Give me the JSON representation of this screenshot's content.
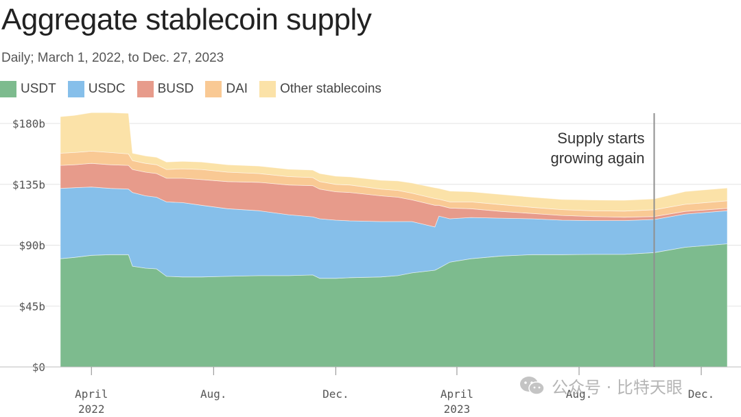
{
  "title": "Aggregate stablecoin supply",
  "subtitle": "Daily; March 1, 2022, to Dec. 27, 2023",
  "legend": [
    {
      "label": "USDT",
      "color": "#7dbb8e"
    },
    {
      "label": "USDC",
      "color": "#86bfea"
    },
    {
      "label": "BUSD",
      "color": "#e79b8b"
    },
    {
      "label": "DAI",
      "color": "#f9c994"
    },
    {
      "label": "Other stablecoins",
      "color": "#fbe2a8"
    }
  ],
  "watermark": {
    "text": "公众号 · 比特天眼",
    "icon": "wechat-logo-icon"
  },
  "chart_data": {
    "type": "area",
    "stacked": true,
    "title": "Aggregate stablecoin supply",
    "subtitle": "Daily; March 1, 2022, to Dec. 27, 2023",
    "xlabel": "",
    "ylabel": "",
    "x_range": [
      "2022-03-01",
      "2023-12-27"
    ],
    "ylim": [
      0,
      180
    ],
    "y_unit": "billions USD",
    "yticks": [
      0,
      45,
      90,
      135,
      180
    ],
    "ytick_labels": [
      "$0",
      "$45b",
      "$90b",
      "$135b",
      "$180b"
    ],
    "xticks": [
      {
        "date": "2022-04-01",
        "label": "April",
        "year": "2022"
      },
      {
        "date": "2022-08-01",
        "label": "Aug.",
        "year": ""
      },
      {
        "date": "2022-12-01",
        "label": "Dec.",
        "year": ""
      },
      {
        "date": "2023-04-01",
        "label": "April",
        "year": "2023"
      },
      {
        "date": "2023-08-01",
        "label": "Aug.",
        "year": ""
      },
      {
        "date": "2023-12-01",
        "label": "Dec.",
        "year": ""
      }
    ],
    "grid": true,
    "legend_position": "top-left",
    "annotation": {
      "date": "2023-10-15",
      "lines": [
        "Supply starts",
        "growing again"
      ]
    },
    "x": [
      "2022-03-01",
      "2022-03-15",
      "2022-04-01",
      "2022-04-20",
      "2022-05-08",
      "2022-05-12",
      "2022-05-25",
      "2022-06-05",
      "2022-06-15",
      "2022-07-01",
      "2022-07-20",
      "2022-08-15",
      "2022-09-15",
      "2022-10-15",
      "2022-11-08",
      "2022-11-15",
      "2022-12-01",
      "2022-12-15",
      "2023-01-15",
      "2023-02-01",
      "2023-02-15",
      "2023-03-10",
      "2023-03-14",
      "2023-03-25",
      "2023-04-15",
      "2023-05-15",
      "2023-06-15",
      "2023-07-15",
      "2023-08-15",
      "2023-09-15",
      "2023-10-15",
      "2023-11-15",
      "2023-12-27"
    ],
    "series": [
      {
        "name": "USDT",
        "values": [
          80,
          81,
          82.5,
          83,
          83,
          74.5,
          73,
          72.5,
          67,
          66.5,
          66.5,
          67,
          67.5,
          67.5,
          68,
          65.5,
          65.5,
          66,
          66.5,
          67.5,
          69.5,
          71.5,
          73,
          77.5,
          80,
          82,
          83,
          83,
          83.2,
          83.2,
          84.5,
          88.5,
          91
        ]
      },
      {
        "name": "USDC",
        "values": [
          52,
          51.5,
          50.5,
          49,
          48.5,
          54.5,
          53.5,
          53,
          55,
          55,
          53,
          50,
          48,
          45,
          43,
          44,
          43,
          42,
          41,
          40,
          38,
          32,
          38.5,
          32,
          30.5,
          28,
          26.5,
          25.5,
          25,
          25,
          24.5,
          24.5,
          24.5
        ]
      },
      {
        "name": "BUSD",
        "values": [
          17,
          17,
          17.5,
          17.5,
          17.5,
          17,
          17.5,
          17.5,
          17.5,
          18,
          19,
          20,
          21,
          22,
          23,
          22,
          21,
          21,
          19,
          18,
          16,
          16,
          8,
          8,
          6.5,
          5,
          4,
          3.5,
          3,
          2.5,
          2.2,
          2,
          1.8
        ]
      },
      {
        "name": "DAI",
        "values": [
          9,
          9,
          9,
          9,
          8.5,
          6.5,
          6.5,
          6.5,
          6.5,
          7,
          7.5,
          7,
          6.5,
          6.2,
          6,
          5.5,
          5.5,
          5.5,
          5,
          5,
          5,
          5,
          4.5,
          4.5,
          5,
          5,
          4.5,
          4.3,
          4.2,
          4.5,
          5,
          5.2,
          5.5
        ]
      },
      {
        "name": "Other stablecoins",
        "values": [
          27,
          27.5,
          28.5,
          29.5,
          30,
          5.5,
          5.5,
          5.5,
          5.5,
          5.5,
          5.5,
          5.5,
          5.5,
          5.5,
          5.5,
          6,
          6,
          6,
          6.5,
          7,
          7.5,
          8,
          8,
          8,
          7.5,
          7.5,
          7.5,
          7.5,
          8,
          8,
          8,
          9.5,
          9.5
        ]
      }
    ]
  }
}
